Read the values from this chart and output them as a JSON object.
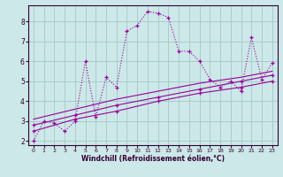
{
  "background_color": "#cce8e8",
  "grid_color": "#aacccc",
  "line_color": "#990099",
  "xlabel": "Windchill (Refroidissement éolien,°C)",
  "xlim": [
    -0.5,
    23.5
  ],
  "ylim": [
    1.8,
    8.8
  ],
  "xticks": [
    0,
    1,
    2,
    3,
    4,
    5,
    6,
    7,
    8,
    9,
    10,
    11,
    12,
    13,
    14,
    15,
    16,
    17,
    18,
    19,
    20,
    21,
    22,
    23
  ],
  "yticks": [
    2,
    3,
    4,
    5,
    6,
    7,
    8
  ],
  "series1_x": [
    0,
    1,
    2,
    3,
    4,
    5,
    6,
    7,
    8,
    9,
    10,
    11,
    12,
    13,
    14,
    15,
    16,
    17,
    18,
    19,
    20,
    21,
    22,
    23
  ],
  "series1_y": [
    2.0,
    3.0,
    2.9,
    2.5,
    3.0,
    6.0,
    3.2,
    5.2,
    4.7,
    7.5,
    7.8,
    8.5,
    8.4,
    8.2,
    6.5,
    6.5,
    6.0,
    5.1,
    4.7,
    5.0,
    4.5,
    7.2,
    5.1,
    5.9
  ],
  "series2_x": [
    0,
    4,
    8,
    12,
    16,
    20,
    23
  ],
  "series2_y": [
    2.5,
    3.1,
    3.5,
    4.0,
    4.4,
    4.7,
    5.0
  ],
  "series3_x": [
    0,
    4,
    8,
    12,
    16,
    20,
    23
  ],
  "series3_y": [
    2.8,
    3.3,
    3.8,
    4.2,
    4.6,
    5.0,
    5.3
  ],
  "series4_x": [
    0,
    4,
    8,
    12,
    16,
    20,
    23
  ],
  "series4_y": [
    3.1,
    3.6,
    4.1,
    4.5,
    4.9,
    5.2,
    5.5
  ]
}
